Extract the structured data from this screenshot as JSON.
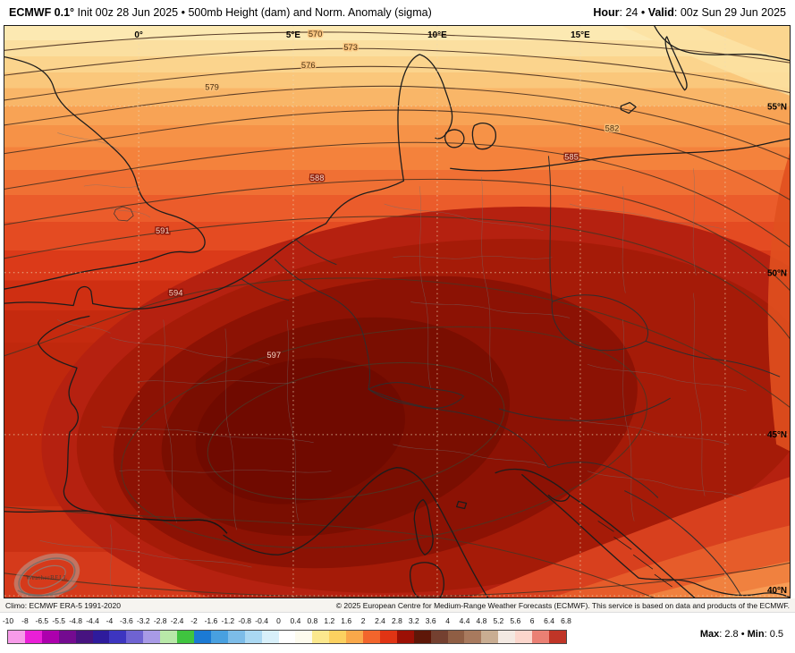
{
  "header": {
    "product_bold": "ECMWF 0.1°",
    "product_rest": " Init 00z 28 Jun 2025 • 500mb Height (dam) and Norm. Anomaly (sigma)",
    "hour_bold": "Hour",
    "hour_rest": ": 24 • ",
    "valid_bold": "Valid",
    "valid_rest": ": 00z Sun 29 Jun 2025"
  },
  "map": {
    "lon_labels": [
      "0°",
      "5°E",
      "10°E",
      "15°E"
    ],
    "lat_labels": [
      "55°N",
      "50°N",
      "45°N",
      "40°N"
    ],
    "contour_values": [
      "570",
      "573",
      "576",
      "579",
      "582",
      "585",
      "588",
      "591",
      "594",
      "597"
    ],
    "logo_text": "WeatherBELL",
    "palette": {
      "top_band": "#fce9b2",
      "mid_band": "#cf2f12",
      "core_band": "#700a00"
    }
  },
  "attribution": {
    "climo": "Climo: ECMWF ERA-5 1991-2020",
    "copyright": "© 2025 European Centre for Medium-Range Weather Forecasts (ECMWF). This service is based on data and products of the ECMWF."
  },
  "colorbar": {
    "ticks": [
      "-10",
      "-8",
      "-6.5",
      "-5.5",
      "-4.8",
      "-4.4",
      "-4",
      "-3.6",
      "-3.2",
      "-2.8",
      "-2.4",
      "-2",
      "-1.6",
      "-1.2",
      "-0.8",
      "-0.4",
      "0",
      "0.4",
      "0.8",
      "1.2",
      "1.6",
      "2",
      "2.4",
      "2.8",
      "3.2",
      "3.6",
      "4",
      "4.4",
      "4.8",
      "5.2",
      "5.6",
      "6",
      "6.4",
      "6.8"
    ],
    "segment_colors": [
      "#f79be9",
      "#ea1fd7",
      "#ad00ad",
      "#740b90",
      "#471380",
      "#2e1b9c",
      "#3d35c0",
      "#6f63d2",
      "#a89ae6",
      "#b8e8a8",
      "#3fc43f",
      "#1b7ad4",
      "#48a0e0",
      "#7cbce8",
      "#aad8f2",
      "#d8f0fa",
      "#ffffff",
      "#fdfbee",
      "#fbe88e",
      "#fbd160",
      "#f9a84a",
      "#f2652c",
      "#e03414",
      "#9c1005",
      "#5e1708",
      "#744030",
      "#8f5e44",
      "#a87a5e",
      "#c9ad92",
      "#f3e9e2",
      "#fbd6cc",
      "#ea8074",
      "#c03527"
    ],
    "max_bold": "Max",
    "max_rest": ": 2.8 • ",
    "min_bold": "Min",
    "min_rest": ": 0.5"
  }
}
